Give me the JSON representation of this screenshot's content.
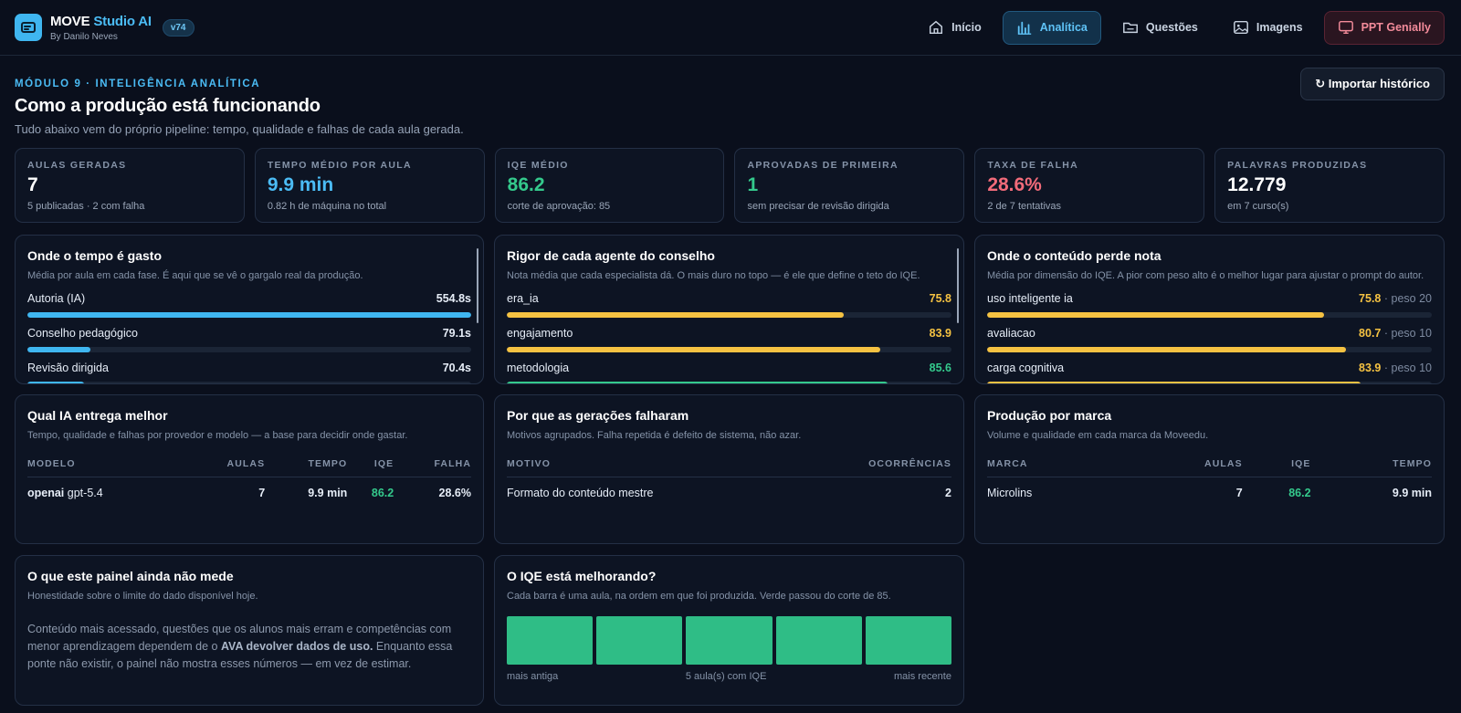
{
  "brand": {
    "title_main": "MOVE",
    "title_accent": "Studio AI",
    "byline": "By Danilo Neves",
    "version": "v74"
  },
  "nav": [
    {
      "label": "Início",
      "icon": "home-icon",
      "active": false
    },
    {
      "label": "Analítica",
      "icon": "analytics-icon",
      "active": true
    },
    {
      "label": "Questões",
      "icon": "folder-icon",
      "active": false
    },
    {
      "label": "Imagens",
      "icon": "image-icon",
      "active": false
    },
    {
      "label": "PPT Genially",
      "icon": "monitor-icon",
      "active": false
    }
  ],
  "header": {
    "eyebrow": "MÓDULO 9 · INTELIGÊNCIA ANALÍTICA",
    "title": "Como a produção está funcionando",
    "subtitle": "Tudo abaixo vem do próprio pipeline: tempo, qualidade e falhas de cada aula gerada.",
    "import_label": "↻ Importar histórico"
  },
  "kpis": [
    {
      "label": "AULAS GERADAS",
      "value": "7",
      "note": "5 publicadas · 2 com falha",
      "color": "#ffffff"
    },
    {
      "label": "TEMPO MÉDIO POR AULA",
      "value": "9.9 min",
      "note": "0.82 h de máquina no total",
      "color": "#4bbcf5"
    },
    {
      "label": "IQE MÉDIO",
      "value": "86.2",
      "note": "corte de aprovação: 85",
      "color": "#34c98c"
    },
    {
      "label": "APROVADAS DE PRIMEIRA",
      "value": "1",
      "note": "sem precisar de revisão dirigida",
      "color": "#34c98c"
    },
    {
      "label": "TAXA DE FALHA",
      "value": "28.6%",
      "note": "2 de 7 tentativas",
      "color": "#f26b7a"
    },
    {
      "label": "PALAVRAS PRODUZIDAS",
      "value": "12.779",
      "note": "em 7 curso(s)",
      "color": "#ffffff"
    }
  ],
  "time_panel": {
    "title": "Onde o tempo é gasto",
    "desc": "Média por aula em cada fase. É aqui que se vê o gargalo real da produção.",
    "rows": [
      {
        "label": "Autoria (IA)",
        "value": "554.8s",
        "fraction": 1.0
      },
      {
        "label": "Conselho pedagógico",
        "value": "79.1s",
        "fraction": 0.143
      },
      {
        "label": "Revisão dirigida",
        "value": "70.4s",
        "fraction": 0.127
      }
    ]
  },
  "rigor_panel": {
    "title": "Rigor de cada agente do conselho",
    "desc": "Nota média que cada especialista dá. O mais duro no topo — é ele que define o teto do IQE.",
    "rows": [
      {
        "label": "era_ia",
        "value": "75.8",
        "fraction": 0.758,
        "color": "yellow"
      },
      {
        "label": "engajamento",
        "value": "83.9",
        "fraction": 0.839,
        "color": "yellow"
      },
      {
        "label": "metodologia",
        "value": "85.6",
        "fraction": 0.856,
        "color": "green"
      }
    ]
  },
  "loss_panel": {
    "title": "Onde o conteúdo perde nota",
    "desc": "Média por dimensão do IQE. A pior com peso alto é o melhor lugar para ajustar o prompt do autor.",
    "rows": [
      {
        "label": "uso inteligente ia",
        "value": "75.8",
        "weight": "· peso 20",
        "fraction": 0.758
      },
      {
        "label": "avaliacao",
        "value": "80.7",
        "weight": "· peso 10",
        "fraction": 0.807
      },
      {
        "label": "carga cognitiva",
        "value": "83.9",
        "weight": "· peso 10",
        "fraction": 0.839
      }
    ]
  },
  "ai_panel": {
    "title": "Qual IA entrega melhor",
    "desc": "Tempo, qualidade e falhas por provedor e modelo — a base para decidir onde gastar.",
    "columns": [
      "MODELO",
      "AULAS",
      "TEMPO",
      "IQE",
      "FALHA"
    ],
    "rows": [
      {
        "provider": "openai",
        "model": "gpt-5.4",
        "aulas": "7",
        "tempo": "9.9 min",
        "iqe": "86.2",
        "falha": "28.6%"
      }
    ]
  },
  "fail_panel": {
    "title": "Por que as gerações falharam",
    "desc": "Motivos agrupados. Falha repetida é defeito de sistema, não azar.",
    "columns": [
      "MOTIVO",
      "OCORRÊNCIAS"
    ],
    "rows": [
      {
        "motivo": "Formato do conteúdo mestre",
        "ocorrencias": "2"
      }
    ]
  },
  "brand_panel": {
    "title": "Produção por marca",
    "desc": "Volume e qualidade em cada marca da Moveedu.",
    "columns": [
      "MARCA",
      "AULAS",
      "IQE",
      "TEMPO"
    ],
    "rows": [
      {
        "marca": "Microlins",
        "aulas": "7",
        "iqe": "86.2",
        "tempo": "9.9 min"
      }
    ]
  },
  "limit_panel": {
    "title": "O que este painel ainda não mede",
    "desc": "Honestidade sobre o limite do dado disponível hoje.",
    "text_before": "Conteúdo mais acessado, questões que os alunos mais erram e competências com menor aprendizagem dependem de o ",
    "text_bold": "AVA devolver dados de uso.",
    "text_after": " Enquanto essa ponte não existir, o painel não mostra esses números — em vez de estimar."
  },
  "iqe_panel": {
    "title": "O IQE está melhorando?",
    "desc": "Cada barra é uma aula, na ordem em que foi produzida. Verde passou do corte de 85.",
    "bar_count": 5,
    "legend_left": "mais antiga",
    "legend_center": "5 aula(s) com IQE",
    "legend_right": "mais recente"
  }
}
